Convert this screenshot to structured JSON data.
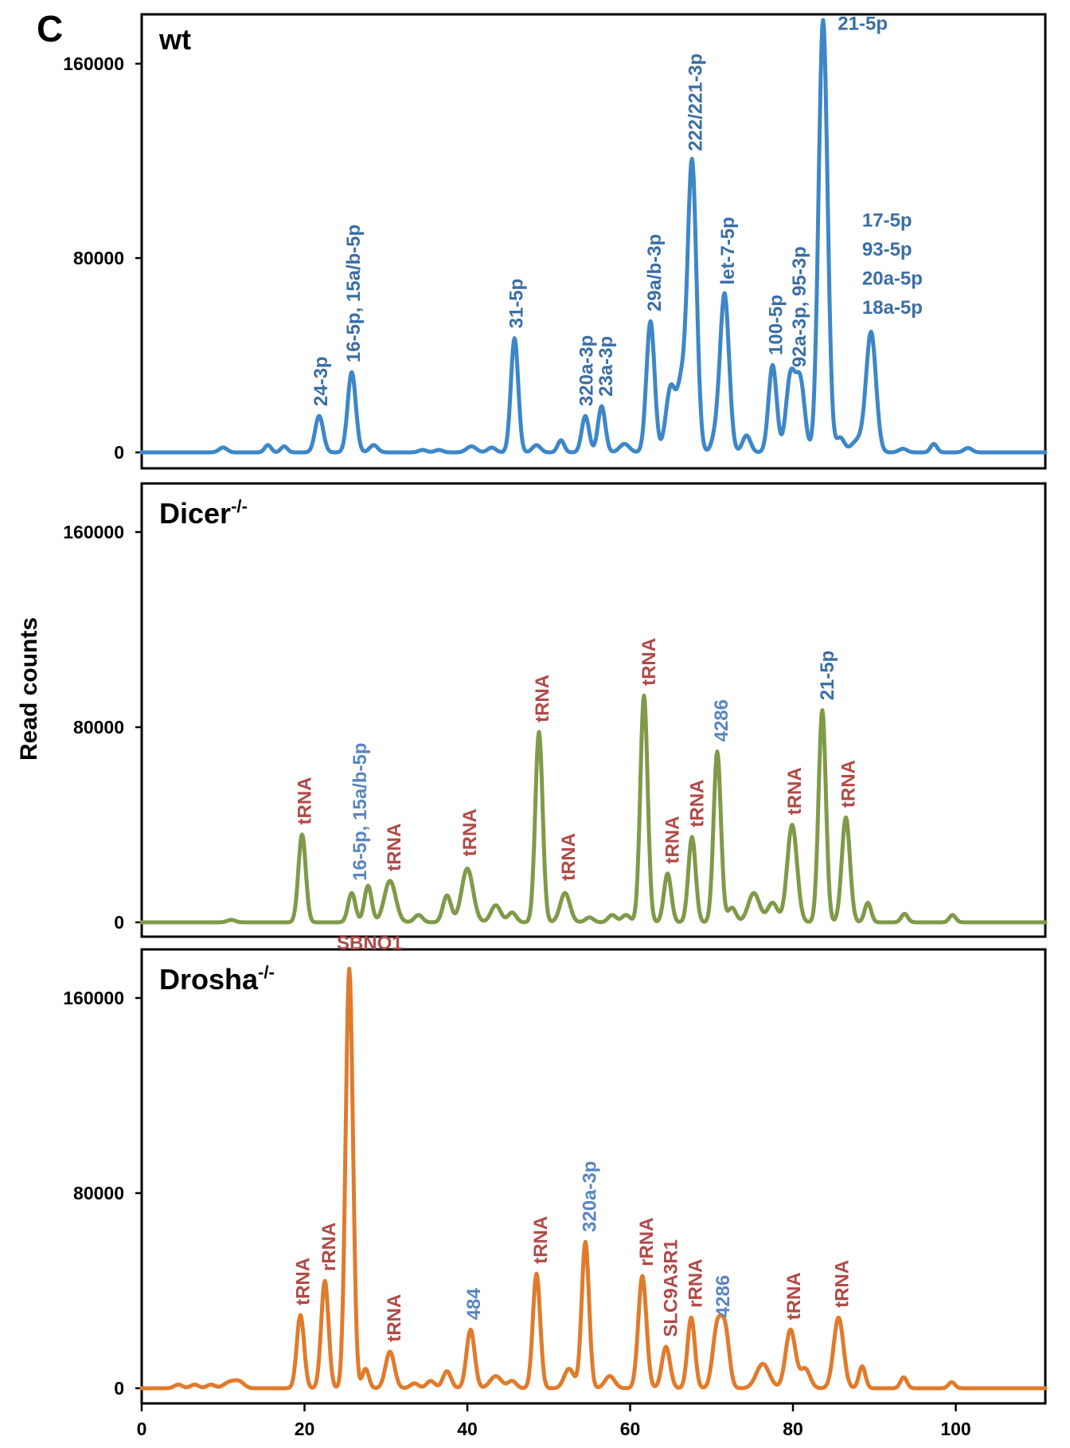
{
  "figure_label": "C",
  "colors": {
    "wt": "#3d87c8",
    "dicer": "#7f9a48",
    "drosha": "#e07b2c",
    "mirna_label": "#3a6ea5",
    "mirna_label_light": "#5a85c0",
    "other_label": "#b04a47"
  },
  "chart_data": {
    "type": "line",
    "ylabel": "Read counts",
    "xlim": [
      0,
      111
    ],
    "ylim": [
      0,
      180000
    ],
    "x_ticks": [
      0,
      20,
      40,
      60,
      80,
      100
    ],
    "y_ticks": [
      0,
      80000,
      160000
    ],
    "panels": [
      {
        "id": "wt",
        "title": "wt",
        "title_sup": "",
        "color_key": "wt",
        "series": {
          "baseline": 0,
          "peaks": [
            [
              10,
              2000,
              0.5
            ],
            [
              15.5,
              3000,
              0.4
            ],
            [
              17.5,
              2500,
              0.4
            ],
            [
              21.8,
              15000,
              0.5
            ],
            [
              25.8,
              33000,
              0.5
            ],
            [
              28.5,
              3000,
              0.5
            ],
            [
              34.5,
              1000,
              0.5
            ],
            [
              36.5,
              1000,
              0.5
            ],
            [
              40.5,
              2500,
              0.6
            ],
            [
              43,
              2000,
              0.5
            ],
            [
              45.8,
              47000,
              0.45
            ],
            [
              48.5,
              3000,
              0.5
            ],
            [
              51.5,
              5000,
              0.4
            ],
            [
              54.5,
              15000,
              0.45
            ],
            [
              56.5,
              19000,
              0.45
            ],
            [
              59.3,
              3500,
              0.6
            ],
            [
              62.5,
              54000,
              0.5
            ],
            [
              65,
              27000,
              0.6
            ],
            [
              66.3,
              25000,
              0.5
            ],
            [
              67.6,
              120000,
              0.55
            ],
            [
              70.5,
              6000,
              0.5
            ],
            [
              71.6,
              65000,
              0.55
            ],
            [
              74.3,
              7000,
              0.5
            ],
            [
              77.5,
              36000,
              0.5
            ],
            [
              79.7,
              31000,
              0.55
            ],
            [
              80.9,
              29000,
              0.55
            ],
            [
              83.7,
              178000,
              0.55
            ],
            [
              85.8,
              6000,
              0.5
            ],
            [
              88,
              5000,
              0.8
            ],
            [
              89.6,
              49000,
              0.6
            ],
            [
              93.5,
              1500,
              0.5
            ],
            [
              97.3,
              3500,
              0.4
            ],
            [
              101.5,
              1800,
              0.5
            ]
          ]
        },
        "annotations": [
          {
            "text": "24-3p",
            "x": 22,
            "y": 19000,
            "color": "mirna_label",
            "rotate": true
          },
          {
            "text": "16-5p, 15a/b-5p",
            "x": 26,
            "y": 37000,
            "color": "mirna_label",
            "rotate": true
          },
          {
            "text": "31-5p",
            "x": 46,
            "y": 51000,
            "color": "mirna_label",
            "rotate": true
          },
          {
            "text": "320a-3p",
            "x": 54.6,
            "y": 19000,
            "color": "mirna_label",
            "rotate": true
          },
          {
            "text": "23a-3p",
            "x": 57,
            "y": 23000,
            "color": "mirna_label",
            "rotate": true
          },
          {
            "text": "29a/b-3p",
            "x": 63,
            "y": 58000,
            "color": "mirna_label",
            "rotate": true
          },
          {
            "text": "222/221-3p",
            "x": 68,
            "y": 124000,
            "color": "mirna_label",
            "rotate": true
          },
          {
            "text": "let-7-5p",
            "x": 72,
            "y": 69000,
            "color": "mirna_label",
            "rotate": true
          },
          {
            "text": "100-5p",
            "x": 77.9,
            "y": 40000,
            "color": "mirna_label",
            "rotate": true
          },
          {
            "text": "92a-3p, 95-3p",
            "x": 80.8,
            "y": 35000,
            "color": "mirna_label",
            "rotate": true
          },
          {
            "text": "21-5p",
            "x": 85.5,
            "y": 174000,
            "color": "mirna_label",
            "rotate": false,
            "anchor": "start"
          },
          {
            "text": "17-5p",
            "x": 88.5,
            "y": 93000,
            "color": "mirna_label",
            "rotate": false,
            "anchor": "start"
          },
          {
            "text": "93-5p",
            "x": 88.5,
            "y": 81000,
            "color": "mirna_label",
            "rotate": false,
            "anchor": "start"
          },
          {
            "text": "20a-5p",
            "x": 88.5,
            "y": 69000,
            "color": "mirna_label",
            "rotate": false,
            "anchor": "start"
          },
          {
            "text": "18a-5p",
            "x": 88.5,
            "y": 57000,
            "color": "mirna_label",
            "rotate": false,
            "anchor": "start"
          }
        ]
      },
      {
        "id": "dicer",
        "title": "Dicer",
        "title_sup": "-/-",
        "color_key": "dicer",
        "series": {
          "baseline": 0,
          "peaks": [
            [
              11,
              1000,
              0.5
            ],
            [
              19.7,
              36000,
              0.45
            ],
            [
              25.8,
              12000,
              0.45
            ],
            [
              27.8,
              15000,
              0.45
            ],
            [
              30.5,
              17000,
              0.7
            ],
            [
              34,
              3000,
              0.5
            ],
            [
              37.5,
              11000,
              0.5
            ],
            [
              40,
              22000,
              0.7
            ],
            [
              43.5,
              7000,
              0.6
            ],
            [
              45.5,
              4000,
              0.5
            ],
            [
              48.8,
              78000,
              0.45
            ],
            [
              52,
              12000,
              0.6
            ],
            [
              55,
              2000,
              0.5
            ],
            [
              57.8,
              3000,
              0.5
            ],
            [
              59.5,
              3000,
              0.5
            ],
            [
              61.7,
              93000,
              0.45
            ],
            [
              64.6,
              20000,
              0.45
            ],
            [
              67.6,
              35000,
              0.45
            ],
            [
              70.7,
              70000,
              0.45
            ],
            [
              72.5,
              6000,
              0.5
            ],
            [
              75.2,
              12000,
              0.7
            ],
            [
              77.5,
              8000,
              0.6
            ],
            [
              79.9,
              40000,
              0.6
            ],
            [
              83.6,
              87000,
              0.45
            ],
            [
              86.5,
              43000,
              0.5
            ],
            [
              89.2,
              8000,
              0.4
            ],
            [
              93.7,
              3500,
              0.4
            ],
            [
              99.6,
              3000,
              0.4
            ]
          ]
        },
        "annotations": [
          {
            "text": "tRNA",
            "x": 20,
            "y": 40000,
            "color": "other_label",
            "rotate": true
          },
          {
            "text": "16-5p, 15a/b-5p",
            "x": 26.8,
            "y": 17000,
            "color": "mirna_label_light",
            "rotate": true
          },
          {
            "text": "tRNA",
            "x": 31,
            "y": 21000,
            "color": "other_label",
            "rotate": true
          },
          {
            "text": "tRNA",
            "x": 40.3,
            "y": 27000,
            "color": "other_label",
            "rotate": true
          },
          {
            "text": "tRNA",
            "x": 49.2,
            "y": 82000,
            "color": "other_label",
            "rotate": true
          },
          {
            "text": "tRNA",
            "x": 52.4,
            "y": 17000,
            "color": "other_label",
            "rotate": true
          },
          {
            "text": "tRNA",
            "x": 62.3,
            "y": 97000,
            "color": "other_label",
            "rotate": true
          },
          {
            "text": "tRNA",
            "x": 65.2,
            "y": 24000,
            "color": "other_label",
            "rotate": true
          },
          {
            "text": "tRNA",
            "x": 68.2,
            "y": 39000,
            "color": "other_label",
            "rotate": true
          },
          {
            "text": "4286",
            "x": 71.2,
            "y": 74000,
            "color": "mirna_label_light",
            "rotate": true
          },
          {
            "text": "tRNA",
            "x": 80.2,
            "y": 44000,
            "color": "other_label",
            "rotate": true
          },
          {
            "text": "21-5p",
            "x": 84.2,
            "y": 91000,
            "color": "mirna_label",
            "rotate": true
          },
          {
            "text": "tRNA",
            "x": 86.8,
            "y": 47000,
            "color": "other_label",
            "rotate": true
          }
        ]
      },
      {
        "id": "drosha",
        "title": "Drosha",
        "title_sup": "-/-",
        "color_key": "drosha",
        "series": {
          "baseline": 0,
          "peaks": [
            [
              4.5,
              1500,
              0.5
            ],
            [
              6.5,
              1500,
              0.5
            ],
            [
              8.5,
              1500,
              0.5
            ],
            [
              10.8,
              2500,
              0.7
            ],
            [
              12,
              2500,
              0.6
            ],
            [
              19.5,
              30000,
              0.45
            ],
            [
              22.5,
              44000,
              0.45
            ],
            [
              25.5,
              172000,
              0.45
            ],
            [
              27.5,
              8000,
              0.4
            ],
            [
              30.5,
              15000,
              0.55
            ],
            [
              33.5,
              2000,
              0.5
            ],
            [
              35.5,
              3000,
              0.5
            ],
            [
              37.5,
              7000,
              0.5
            ],
            [
              40.4,
              24000,
              0.5
            ],
            [
              43.5,
              5000,
              0.7
            ],
            [
              45.5,
              3000,
              0.5
            ],
            [
              48.5,
              47000,
              0.45
            ],
            [
              52.5,
              8000,
              0.6
            ],
            [
              54.5,
              60000,
              0.45
            ],
            [
              57.5,
              5000,
              0.6
            ],
            [
              61.5,
              46000,
              0.5
            ],
            [
              64.4,
              17000,
              0.5
            ],
            [
              67.5,
              29000,
              0.45
            ],
            [
              70.7,
              25000,
              0.55
            ],
            [
              71.7,
              22000,
              0.5
            ],
            [
              76.3,
              10000,
              0.8
            ],
            [
              79.7,
              24000,
              0.6
            ],
            [
              81.5,
              8000,
              0.6
            ],
            [
              85.6,
              29000,
              0.6
            ],
            [
              88.5,
              9000,
              0.4
            ],
            [
              93.6,
              4500,
              0.4
            ],
            [
              99.5,
              2500,
              0.4
            ]
          ]
        },
        "annotations": [
          {
            "text": "tRNA",
            "x": 19.8,
            "y": 34000,
            "color": "other_label",
            "rotate": true
          },
          {
            "text": "rRNA",
            "x": 23,
            "y": 48000,
            "color": "other_label",
            "rotate": true
          },
          {
            "text": "SBNO1",
            "x": 28,
            "y": 180000,
            "color": "other_label",
            "rotate": false,
            "anchor": "middle"
          },
          {
            "text": "tRNA",
            "x": 31,
            "y": 19000,
            "color": "other_label",
            "rotate": true
          },
          {
            "text": "484",
            "x": 40.8,
            "y": 28000,
            "color": "mirna_label_light",
            "rotate": true
          },
          {
            "text": "tRNA",
            "x": 49,
            "y": 51000,
            "color": "other_label",
            "rotate": true
          },
          {
            "text": "320a-3p",
            "x": 55,
            "y": 64000,
            "color": "mirna_label_light",
            "rotate": true
          },
          {
            "text": "rRNA",
            "x": 62,
            "y": 50000,
            "color": "other_label",
            "rotate": true
          },
          {
            "text": "SLC9A3R1",
            "x": 65,
            "y": 21000,
            "color": "other_label",
            "rotate": true
          },
          {
            "text": "rRNA",
            "x": 68,
            "y": 33000,
            "color": "other_label",
            "rotate": true
          },
          {
            "text": "4286",
            "x": 71.4,
            "y": 29000,
            "color": "mirna_label_light",
            "rotate": true
          },
          {
            "text": "tRNA",
            "x": 80.1,
            "y": 28000,
            "color": "other_label",
            "rotate": true
          },
          {
            "text": "tRNA",
            "x": 86,
            "y": 33000,
            "color": "other_label",
            "rotate": true
          }
        ]
      }
    ]
  }
}
